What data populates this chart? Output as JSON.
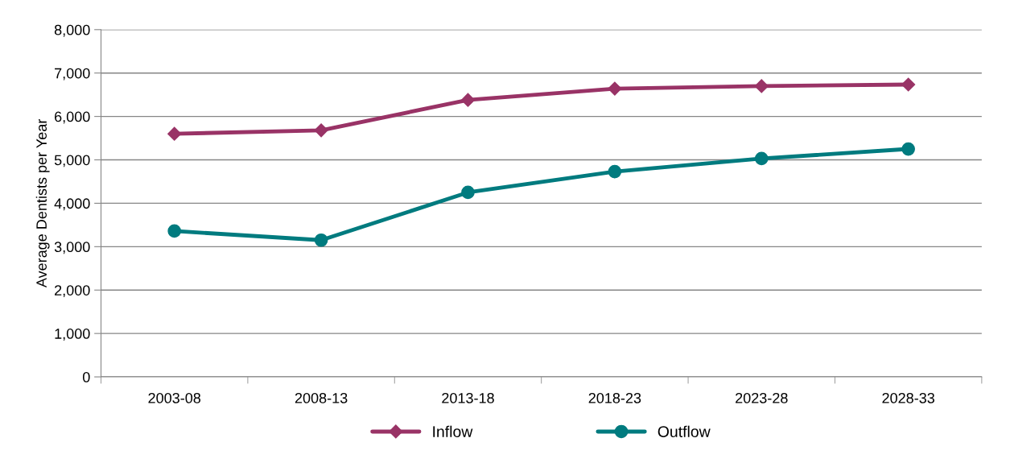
{
  "chart_data": {
    "type": "line",
    "ylabel": "Average Dentists per Year",
    "categories": [
      "2003-08",
      "2008-13",
      "2013-18",
      "2018-23",
      "2023-28",
      "2028-33"
    ],
    "series": [
      {
        "name": "Inflow",
        "color": "#993366",
        "marker": "diamond",
        "values": [
          5600,
          5680,
          6380,
          6640,
          6700,
          6735
        ]
      },
      {
        "name": "Outflow",
        "color": "#007b7f",
        "marker": "circle",
        "values": [
          3360,
          3150,
          4250,
          4730,
          5030,
          5250
        ]
      }
    ],
    "ylim": [
      0,
      8000
    ],
    "yticks": [
      {
        "value": 0,
        "label": "0"
      },
      {
        "value": 1000,
        "label": "1,000"
      },
      {
        "value": 2000,
        "label": "2,000"
      },
      {
        "value": 3000,
        "label": "3,000"
      },
      {
        "value": 4000,
        "label": "4,000"
      },
      {
        "value": 5000,
        "label": "5,000"
      },
      {
        "value": 6000,
        "label": "6,000"
      },
      {
        "value": 7000,
        "label": "7,000"
      },
      {
        "value": 8000,
        "label": "8,000"
      }
    ],
    "grid": "y",
    "legend": "bottom",
    "line_style": "solid"
  }
}
